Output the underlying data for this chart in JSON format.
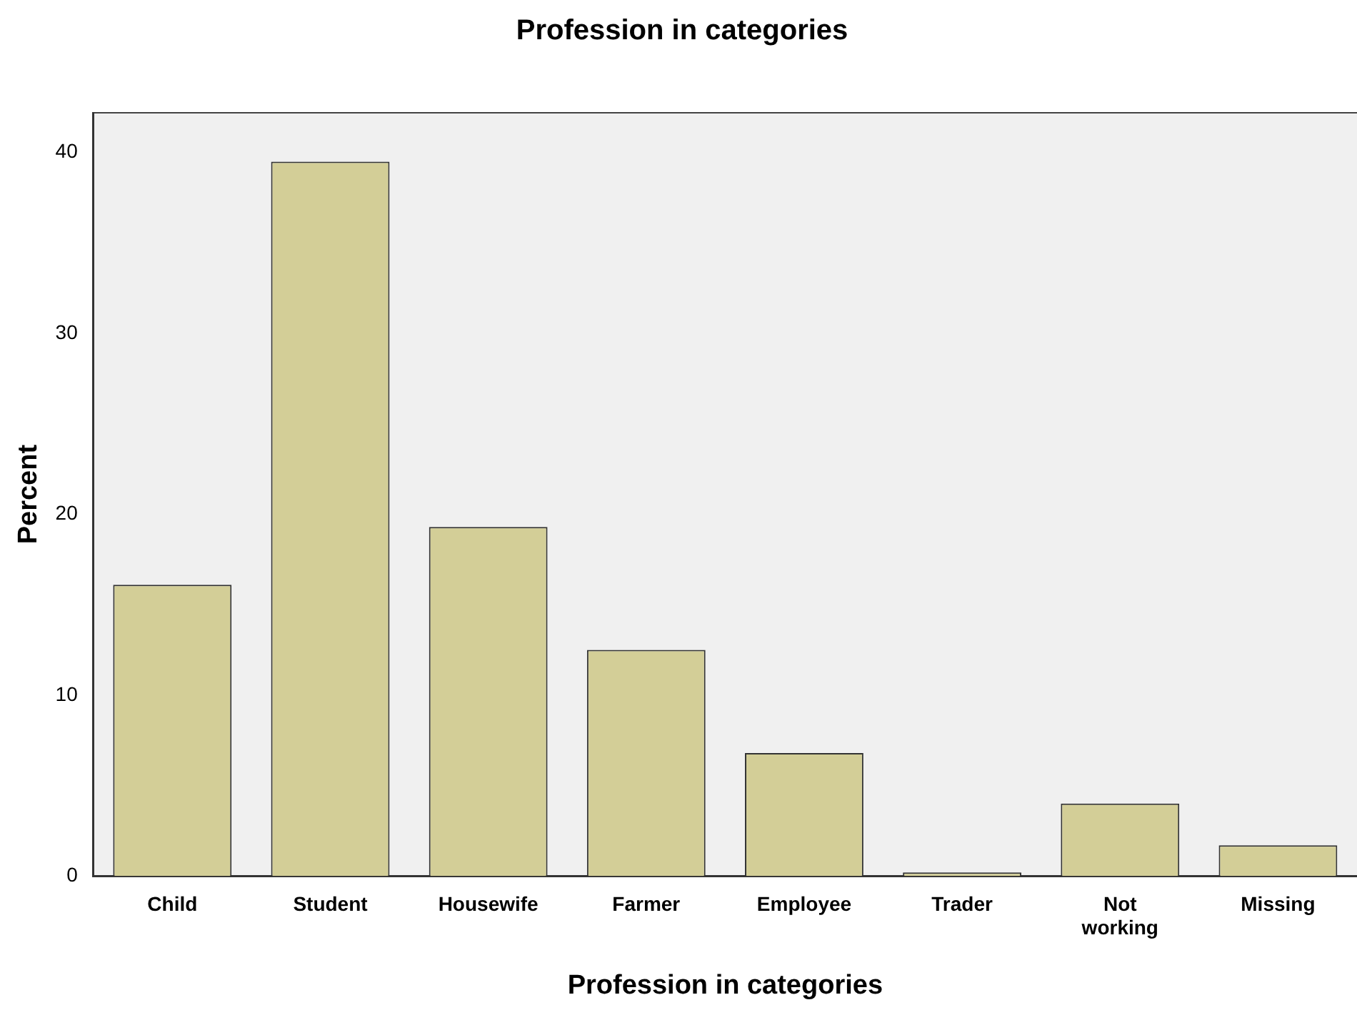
{
  "chart_data": {
    "type": "bar",
    "title": "Profession in categories",
    "xlabel": "Profession in categories",
    "ylabel": "Percent",
    "categories": [
      "Child",
      "Student",
      "Housewife",
      "Farmer",
      "Employee",
      "Trader",
      "Not working",
      "Missing"
    ],
    "values": [
      16.1,
      39.5,
      19.3,
      12.5,
      6.8,
      0.2,
      4.0,
      1.7
    ],
    "color": "#d3ce97",
    "ylim": [
      0,
      42.2
    ],
    "yticks": [
      0,
      10,
      20,
      30,
      40
    ],
    "grid": false,
    "legend": false
  }
}
